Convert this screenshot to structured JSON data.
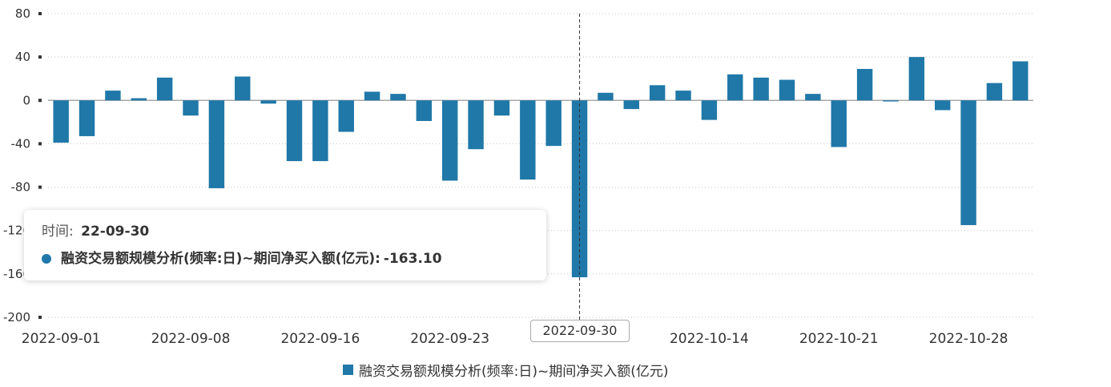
{
  "chart_data": {
    "type": "bar",
    "dates": [
      "2022-09-01",
      "2022-09-02",
      "2022-09-05",
      "2022-09-06",
      "2022-09-07",
      "2022-09-08",
      "2022-09-09",
      "2022-09-13",
      "2022-09-14",
      "2022-09-15",
      "2022-09-16",
      "2022-09-19",
      "2022-09-20",
      "2022-09-21",
      "2022-09-22",
      "2022-09-23",
      "2022-09-26",
      "2022-09-27",
      "2022-09-28",
      "2022-09-29",
      "2022-09-30",
      "2022-10-10",
      "2022-10-11",
      "2022-10-12",
      "2022-10-13",
      "2022-10-14",
      "2022-10-17",
      "2022-10-18",
      "2022-10-19",
      "2022-10-20",
      "2022-10-21",
      "2022-10-24",
      "2022-10-25",
      "2022-10-26",
      "2022-10-27",
      "2022-10-28",
      "2022-10-31",
      "2022-11-01"
    ],
    "series": [
      {
        "name": "融资交易额规模分析(频率:日)~期间净买入额(亿元)",
        "values": [
          -39,
          -33,
          9,
          2,
          21,
          -14,
          -81,
          22,
          -3,
          -56,
          -56,
          -29,
          8,
          6,
          -19,
          -74,
          -45,
          -14,
          -73,
          -42,
          -163.1,
          7,
          -8,
          14,
          9,
          -18,
          24,
          21,
          19,
          6,
          -43,
          29,
          -1,
          40,
          -9,
          -115,
          16,
          36
        ]
      }
    ],
    "x_tick_labels": [
      "2022-09-01",
      "2022-09-08",
      "2022-09-16",
      "2022-09-23",
      "2022-10-14",
      "2022-10-21",
      "2022-10-28"
    ],
    "y_ticks": [
      80,
      40,
      0,
      -40,
      -80,
      -120,
      -160,
      -200
    ],
    "ylim": [
      -200,
      80
    ],
    "grid": "horizontal-dotted",
    "legend_position": "bottom-center",
    "color": "#1f78a8"
  },
  "tooltip": {
    "time_label": "时间:",
    "date": "22-09-30",
    "series_name": "融资交易额规模分析(频率:日)~期间净买入额(亿元):",
    "value": "-163.10"
  },
  "hover_x_label": "2022-09-30",
  "hover_index": 20,
  "legend_label": "融资交易额规模分析(频率:日)~期间净买入额(亿元)"
}
